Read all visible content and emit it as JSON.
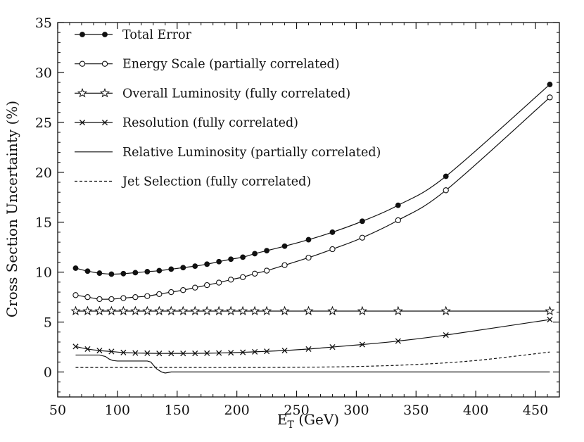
{
  "chart_data": {
    "type": "line",
    "title": "",
    "xlabel": "E",
    "xlabel_sub": "T",
    "xlabel_unit": " (GeV)",
    "ylabel": "Cross Section Uncertainty (%)",
    "xlim": [
      50,
      470
    ],
    "ylim": [
      -2.5,
      35
    ],
    "xticks": [
      50,
      100,
      150,
      200,
      250,
      300,
      350,
      400,
      450
    ],
    "yticks": [
      0,
      5,
      10,
      15,
      20,
      25,
      30,
      35
    ],
    "legend_position": "top-left",
    "series": [
      {
        "name": "Total Error",
        "marker": "filled-circle",
        "line": "solid",
        "x": [
          65,
          75,
          85,
          95,
          105,
          115,
          125,
          135,
          145,
          155,
          165,
          175,
          185,
          195,
          205,
          215,
          225,
          240,
          260,
          280,
          305,
          335,
          375,
          462
        ],
        "y": [
          10.4,
          10.1,
          9.9,
          9.8,
          9.85,
          9.95,
          10.05,
          10.15,
          10.3,
          10.45,
          10.6,
          10.8,
          11.05,
          11.3,
          11.5,
          11.85,
          12.15,
          12.6,
          13.25,
          14.0,
          15.1,
          16.7,
          19.6,
          28.8
        ]
      },
      {
        "name": "Energy Scale (partially correlated)",
        "marker": "open-circle",
        "line": "solid",
        "x": [
          65,
          75,
          85,
          95,
          105,
          115,
          125,
          135,
          145,
          155,
          165,
          175,
          185,
          195,
          205,
          215,
          225,
          240,
          260,
          280,
          305,
          335,
          375,
          462
        ],
        "y": [
          7.7,
          7.5,
          7.3,
          7.3,
          7.4,
          7.5,
          7.6,
          7.8,
          8.0,
          8.2,
          8.45,
          8.7,
          8.95,
          9.25,
          9.5,
          9.85,
          10.15,
          10.7,
          11.45,
          12.3,
          13.45,
          15.2,
          18.2,
          27.5
        ]
      },
      {
        "name": "Overall Luminosity (fully correlated)",
        "marker": "open-star",
        "line": "solid",
        "x": [
          65,
          75,
          85,
          95,
          105,
          115,
          125,
          135,
          145,
          155,
          165,
          175,
          185,
          195,
          205,
          215,
          225,
          240,
          260,
          280,
          305,
          335,
          375,
          462
        ],
        "y": [
          6.1,
          6.1,
          6.1,
          6.1,
          6.1,
          6.1,
          6.1,
          6.1,
          6.1,
          6.1,
          6.1,
          6.1,
          6.1,
          6.1,
          6.1,
          6.1,
          6.1,
          6.1,
          6.1,
          6.1,
          6.1,
          6.1,
          6.1,
          6.1
        ]
      },
      {
        "name": "Resolution (fully correlated)",
        "marker": "cross",
        "line": "solid",
        "x": [
          65,
          75,
          85,
          95,
          105,
          115,
          125,
          135,
          145,
          155,
          165,
          175,
          185,
          195,
          205,
          215,
          225,
          240,
          260,
          280,
          305,
          335,
          375,
          462
        ],
        "y": [
          2.55,
          2.3,
          2.15,
          2.05,
          1.95,
          1.9,
          1.88,
          1.86,
          1.86,
          1.86,
          1.87,
          1.88,
          1.9,
          1.93,
          1.97,
          2.02,
          2.07,
          2.15,
          2.3,
          2.5,
          2.75,
          3.1,
          3.7,
          5.25
        ]
      },
      {
        "name": "Relative Luminosity (partially correlated)",
        "marker": "none",
        "line": "solid",
        "x": [
          65,
          85,
          90,
          93,
          96,
          100,
          125,
          128,
          130,
          133,
          137,
          140,
          145,
          462
        ],
        "y": [
          1.7,
          1.7,
          1.55,
          1.3,
          1.15,
          1.1,
          1.1,
          1.0,
          0.7,
          0.3,
          0.0,
          -0.1,
          0.0,
          0.0
        ]
      },
      {
        "name": "Jet Selection (fully correlated)",
        "marker": "none",
        "line": "dashed",
        "x": [
          65,
          100,
          150,
          200,
          250,
          300,
          350,
          400,
          462
        ],
        "y": [
          0.45,
          0.45,
          0.45,
          0.45,
          0.47,
          0.55,
          0.75,
          1.15,
          2.0
        ]
      }
    ]
  }
}
